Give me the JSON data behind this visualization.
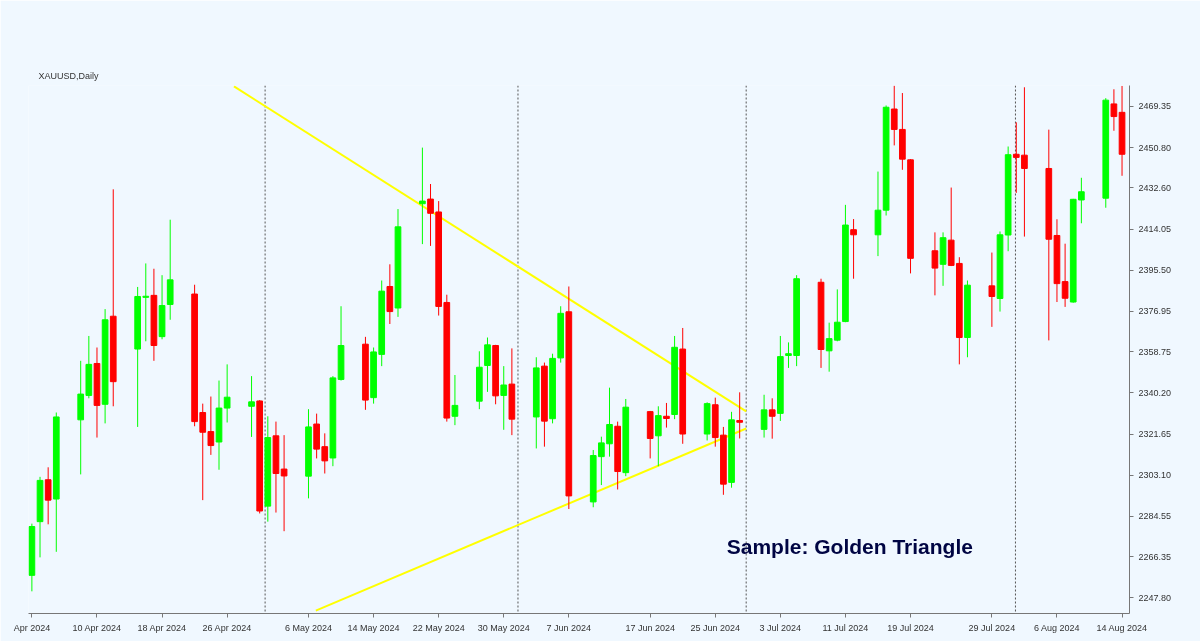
{
  "chart_data": {
    "type": "candlestick",
    "title": "XAUUSD,Daily",
    "annotations": [
      "Sample: Golden Triangle"
    ],
    "x": [
      "2024-04-02",
      "2024-04-03",
      "2024-04-04",
      "2024-04-05",
      "2024-04-08",
      "2024-04-09",
      "2024-04-10",
      "2024-04-11",
      "2024-04-12",
      "2024-04-15",
      "2024-04-16",
      "2024-04-17",
      "2024-04-18",
      "2024-04-19",
      "2024-04-22",
      "2024-04-23",
      "2024-04-24",
      "2024-04-25",
      "2024-04-26",
      "2024-04-29",
      "2024-04-30",
      "2024-05-01",
      "2024-05-02",
      "2024-05-03",
      "2024-05-06",
      "2024-05-07",
      "2024-05-08",
      "2024-05-09",
      "2024-05-10",
      "2024-05-13",
      "2024-05-14",
      "2024-05-15",
      "2024-05-16",
      "2024-05-17",
      "2024-05-20",
      "2024-05-21",
      "2024-05-22",
      "2024-05-23",
      "2024-05-24",
      "2024-05-27",
      "2024-05-28",
      "2024-05-29",
      "2024-05-30",
      "2024-05-31",
      "2024-06-03",
      "2024-06-04",
      "2024-06-05",
      "2024-06-06",
      "2024-06-07",
      "2024-06-10",
      "2024-06-11",
      "2024-06-12",
      "2024-06-13",
      "2024-06-14",
      "2024-06-17",
      "2024-06-18",
      "2024-06-19",
      "2024-06-20",
      "2024-06-21",
      "2024-06-24",
      "2024-06-25",
      "2024-06-26",
      "2024-06-27",
      "2024-06-28",
      "2024-07-01",
      "2024-07-02",
      "2024-07-03",
      "2024-07-04",
      "2024-07-05",
      "2024-07-08",
      "2024-07-09",
      "2024-07-10",
      "2024-07-11",
      "2024-07-12",
      "2024-07-15",
      "2024-07-16",
      "2024-07-17",
      "2024-07-18",
      "2024-07-19",
      "2024-07-22",
      "2024-07-23",
      "2024-07-24",
      "2024-07-25",
      "2024-07-26",
      "2024-07-29",
      "2024-07-30",
      "2024-07-31",
      "2024-08-01",
      "2024-08-02",
      "2024-08-05",
      "2024-08-06",
      "2024-08-07",
      "2024-08-08",
      "2024-08-09",
      "2024-08-12",
      "2024-08-13",
      "2024-08-14"
    ],
    "ohlc": [
      [
        2258,
        2281.3,
        2250.8,
        2280
      ],
      [
        2282.2,
        2302.4,
        2266.1,
        2300.8
      ],
      [
        2301.1,
        2306.7,
        2281.0,
        2291.9
      ],
      [
        2292.4,
        2331.4,
        2268.6,
        2329.4
      ],
      [
        2328.1,
        2354.7,
        2303.5,
        2339.7
      ],
      [
        2339.1,
        2365.9,
        2337.8,
        2353.1
      ],
      [
        2353.5,
        2360.7,
        2320.1,
        2334.6
      ],
      [
        2335.1,
        2378.0,
        2326.5,
        2373.2
      ],
      [
        2374.8,
        2432.0,
        2334.2,
        2345.3
      ],
      [
        2360.0,
        2388.0,
        2324.9,
        2383.7
      ],
      [
        2383.3,
        2398.6,
        2363.5,
        2383.8
      ],
      [
        2384.2,
        2396.2,
        2354.7,
        2361.6
      ],
      [
        2365.6,
        2393.3,
        2364.4,
        2379.6
      ],
      [
        2380.1,
        2418.3,
        2373.2,
        2391.2
      ],
      [
        2384.8,
        2389.0,
        2325.2,
        2327.3
      ],
      [
        2331.4,
        2335.4,
        2291.9,
        2322.5
      ],
      [
        2322.8,
        2338.6,
        2312.3,
        2316.5
      ],
      [
        2318.1,
        2345.8,
        2305.6,
        2333.4
      ],
      [
        2333.4,
        2353.1,
        2326.9,
        2338.3
      ],
      [
        2334.2,
        2347.8,
        2320.4,
        2336.2
      ],
      [
        2336.6,
        2337.0,
        2285.9,
        2287.0
      ],
      [
        2289.2,
        2329.7,
        2282.2,
        2320.1
      ],
      [
        2320.9,
        2327.3,
        2286.3,
        2303.9
      ],
      [
        2305.9,
        2321.2,
        2277.9,
        2302.8
      ],
      [
        2302.7,
        2332.9,
        2292.7,
        2324.9
      ],
      [
        2326.2,
        2330.9,
        2310.7,
        2314.9
      ],
      [
        2316.0,
        2322.0,
        2303.9,
        2309.6
      ],
      [
        2310.9,
        2347.8,
        2307.2,
        2347.0
      ],
      [
        2346.3,
        2379.3,
        2345.8,
        2361.6
      ],
      [
        2362.2,
        2365.5,
        2332.6,
        2337.0
      ],
      [
        2338.1,
        2360.7,
        2335.4,
        2358.7
      ],
      [
        2357.6,
        2390.9,
        2352.3,
        2386.1
      ],
      [
        2388.2,
        2398.2,
        2371.3,
        2376.9
      ],
      [
        2378.5,
        2423.1,
        2374.5,
        2415.1
      ],
      [
        2425.5,
        2450.8,
        2407.3,
        2426.7
      ],
      [
        2427.6,
        2434.4,
        2406.5,
        2421.2
      ],
      [
        2421.8,
        2426.7,
        2375.1,
        2379.2
      ],
      [
        2381.0,
        2384.5,
        2327.3,
        2328.9
      ],
      [
        2329.7,
        2348.3,
        2325.7,
        2334.6
      ],
      [
        2336.5,
        2359.0,
        2332.9,
        2351.8
      ],
      [
        2352.6,
        2365.2,
        2340.7,
        2361.9
      ],
      [
        2361.6,
        2361.9,
        2335.1,
        2338.9
      ],
      [
        2339.1,
        2352.3,
        2323.6,
        2343.8
      ],
      [
        2344.2,
        2360.3,
        2321.2,
        2328.4
      ],
      [
        2329.4,
        2356.3,
        2315.2,
        2351.5
      ],
      [
        2352.3,
        2353.9,
        2316.0,
        2327.5
      ],
      [
        2328.6,
        2357.9,
        2326.5,
        2355.8
      ],
      [
        2356.0,
        2379.3,
        2353.9,
        2376.1
      ],
      [
        2376.8,
        2388.2,
        2287.9,
        2293.8
      ],
      [
        2291.1,
        2314.5,
        2288.7,
        2312.0
      ],
      [
        2311.5,
        2320.5,
        2298.7,
        2317.7
      ],
      [
        2317.3,
        2342.6,
        2311.5,
        2326.0
      ],
      [
        2325.2,
        2327.3,
        2296.7,
        2304.8
      ],
      [
        2304.3,
        2337.5,
        2302.7,
        2333.8
      ],
      [
        2331.8,
        2332.1,
        2310.7,
        2319.7
      ],
      [
        2320.9,
        2334.2,
        2307.2,
        2330.0
      ],
      [
        2329.7,
        2335.7,
        2324.6,
        2328.7
      ],
      [
        2330.5,
        2365.9,
        2328.4,
        2360.8
      ],
      [
        2360.0,
        2369.5,
        2317.3,
        2321.7
      ],
      [
        2321.7,
        2336.0,
        2318.8,
        2335.4
      ],
      [
        2334.9,
        2338.1,
        2316.0,
        2320.1
      ],
      [
        2321.2,
        2324.9,
        2294.3,
        2299.1
      ],
      [
        2299.9,
        2331.7,
        2297.5,
        2328.1
      ],
      [
        2327.8,
        2340.5,
        2319.7,
        2327.0
      ],
      [
        2323.8,
        2339.4,
        2320.1,
        2332.6
      ],
      [
        2332.6,
        2337.8,
        2319.6,
        2329.7
      ],
      [
        2331.0,
        2365.9,
        2327.6,
        2356.6
      ],
      [
        2357.1,
        2363.0,
        2351.5,
        2357.9
      ],
      [
        2357.1,
        2393.3,
        2352.3,
        2391.7
      ],
      [
        2390.1,
        2391.7,
        2351.5,
        2359.8
      ],
      [
        2359.2,
        2371.9,
        2349.8,
        2364.7
      ],
      [
        2364.0,
        2386.9,
        2363.5,
        2372.1
      ],
      [
        2372.4,
        2425.0,
        2372.1,
        2415.9
      ],
      [
        2413.8,
        2418.6,
        2391.7,
        2411.5
      ],
      [
        2411.5,
        2440.0,
        2401.9,
        2422.6
      ],
      [
        2422.6,
        2469.8,
        2420.2,
        2469.0
      ],
      [
        2468.2,
        2478.7,
        2451.8,
        2459.0
      ],
      [
        2459.0,
        2475.4,
        2440.8,
        2445.6
      ],
      [
        2445.3,
        2445.6,
        2394.1,
        2400.9
      ],
      [
        2404.3,
        2412.6,
        2384.2,
        2396.5
      ],
      [
        2398.2,
        2412.6,
        2388.5,
        2410.2
      ],
      [
        2409.1,
        2432.8,
        2397.4,
        2397.7
      ],
      [
        2398.6,
        2401.4,
        2353.1,
        2365.2
      ],
      [
        2365.2,
        2390.9,
        2356.3,
        2388.8
      ],
      [
        2388.5,
        2403.5,
        2370.0,
        2383.7
      ],
      [
        2382.8,
        2413.0,
        2376.9,
        2411.5
      ],
      [
        2411.4,
        2451.3,
        2404.1,
        2447.6
      ],
      [
        2447.8,
        2462.2,
        2430.4,
        2446.4
      ],
      [
        2447.4,
        2478.0,
        2410.7,
        2441.4
      ],
      [
        2441.4,
        2458.9,
        2363.9,
        2409.5
      ],
      [
        2411.2,
        2418.5,
        2381.2,
        2389.5
      ],
      [
        2390.4,
        2407.5,
        2379.0,
        2382.9
      ],
      [
        2381.2,
        2427.7,
        2380.9,
        2427.5
      ],
      [
        2427.2,
        2437.2,
        2416.7,
        2430.9
      ],
      [
        2428.0,
        2473.1,
        2423.7,
        2472.2
      ],
      [
        2470.5,
        2477.1,
        2458.4,
        2464.8
      ],
      [
        2466.7,
        2478.6,
        2438.1,
        2447.8
      ]
    ],
    "series": [
      {
        "type": "line",
        "color": "#ffff00",
        "x": [
          "2024-04-26T20:10",
          "2024-06-28T19:12"
        ],
        "values": [
          2478.4,
          2331.9
        ]
      },
      {
        "type": "line",
        "color": "#ffff00",
        "x": [
          "2024-05-06T21:36",
          "2024-06-28T19:12"
        ],
        "values": [
          2242.1,
          2324.2
        ]
      }
    ],
    "ref_lines": [
      {
        "axis": "x",
        "value": "2024-04-30T16:00",
        "color": "#555555",
        "line_style": "dotted"
      },
      {
        "axis": "x",
        "value": "2024-05-31T18:00",
        "color": "#555555",
        "line_style": "dotted"
      },
      {
        "axis": "x",
        "value": "2024-06-28T19:12",
        "color": "#555555",
        "line_style": "dotted"
      },
      {
        "axis": "x",
        "value": "2024-07-31T21:36",
        "color": "#555555",
        "line_style": "dotted"
      }
    ],
    "xlim": [
      "2024-04-01T14:00",
      "2024-08-14T22:00"
    ],
    "xticks": [
      {
        "value": "2024-04-02",
        "label": "Apr 2024"
      },
      {
        "value": "2024-04-10",
        "label": "10 Apr 2024"
      },
      {
        "value": "2024-04-18",
        "label": "18 Apr 2024"
      },
      {
        "value": "2024-04-26",
        "label": "26 Apr 2024"
      },
      {
        "value": "2024-05-06",
        "label": "6 May 2024"
      },
      {
        "value": "2024-05-14",
        "label": "14 May 2024"
      },
      {
        "value": "2024-05-22",
        "label": "22 May 2024"
      },
      {
        "value": "2024-05-30",
        "label": "30 May 2024"
      },
      {
        "value": "2024-06-07",
        "label": "7 Jun 2024"
      },
      {
        "value": "2024-06-17",
        "label": "17 Jun 2024"
      },
      {
        "value": "2024-06-25",
        "label": "25 Jun 2024"
      },
      {
        "value": "2024-07-03",
        "label": "3 Jul 2024"
      },
      {
        "value": "2024-07-11",
        "label": "11 Jul 2024"
      },
      {
        "value": "2024-07-19",
        "label": "19 Jul 2024"
      },
      {
        "value": "2024-07-29",
        "label": "29 Jul 2024"
      },
      {
        "value": "2024-08-06",
        "label": "6 Aug 2024"
      },
      {
        "value": "2024-08-14",
        "label": "14 Aug 2024"
      }
    ],
    "ylim": [
      2240.8,
      2478.8
    ],
    "yticks": [
      {
        "value": 2247.8,
        "label": "2247.80"
      },
      2266.35,
      2284.55,
      {
        "value": 2303.1,
        "label": "2303.10"
      },
      2321.65,
      {
        "value": 2340.2,
        "label": "2340.20"
      },
      2358.75,
      2376.95,
      {
        "value": 2395.5,
        "label": "2395.50"
      },
      2414.05,
      {
        "value": 2432.6,
        "label": "2432.60"
      },
      {
        "value": 2450.8,
        "label": "2450.80"
      },
      2469.35
    ],
    "grid": false
  }
}
